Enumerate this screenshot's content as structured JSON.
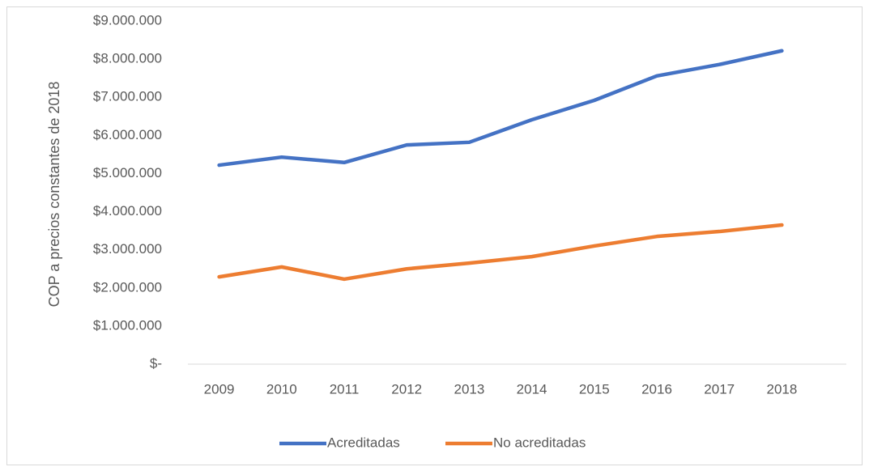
{
  "chart_data": {
    "type": "line",
    "y_label": "COP a precios constantes de 2018",
    "categories": [
      "2009",
      "2010",
      "2011",
      "2012",
      "2013",
      "2014",
      "2015",
      "2016",
      "2017",
      "2018"
    ],
    "series": [
      {
        "name": "Acreditadas",
        "color": "#4472c4",
        "values": [
          5220000,
          5430000,
          5290000,
          5750000,
          5820000,
          6410000,
          6920000,
          7560000,
          7860000,
          8220000
        ]
      },
      {
        "name": "No acreditadas",
        "color": "#ed7d31",
        "values": [
          2290000,
          2550000,
          2230000,
          2500000,
          2650000,
          2820000,
          3100000,
          3350000,
          3480000,
          3650000
        ]
      }
    ],
    "ylim": [
      0,
      9000000
    ],
    "yticks": [
      {
        "value": 0,
        "label": "$-"
      },
      {
        "value": 1000000,
        "label": "$1.000.000"
      },
      {
        "value": 2000000,
        "label": "$2.000.000"
      },
      {
        "value": 3000000,
        "label": "$3.000.000"
      },
      {
        "value": 4000000,
        "label": "$4.000.000"
      },
      {
        "value": 5000000,
        "label": "$5.000.000"
      },
      {
        "value": 6000000,
        "label": "$6.000.000"
      },
      {
        "value": 7000000,
        "label": "$7.000.000"
      },
      {
        "value": 8000000,
        "label": "$8.000.000"
      },
      {
        "value": 9000000,
        "label": "$9.000.000"
      }
    ],
    "grid": false,
    "legend": "bottom"
  }
}
